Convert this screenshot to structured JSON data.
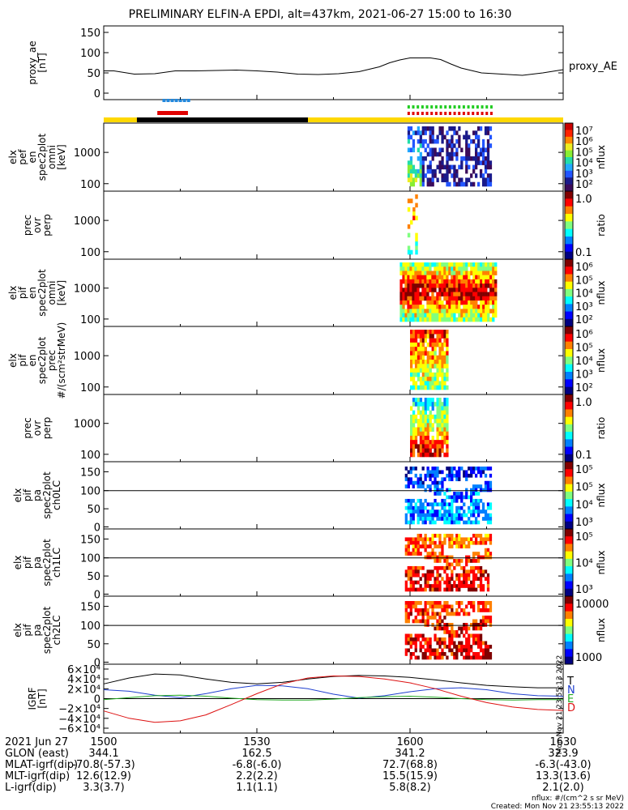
{
  "title": "PRELIMINARY ELFIN-A EPDI, alt=437km, 2021-06-27 15:00 to 16:30",
  "chart_data": [
    {
      "type": "line",
      "panel": "proxy_ae",
      "ylabel": [
        "proxy_ae",
        "[nT]"
      ],
      "yticks": [
        "150",
        "100",
        "50",
        "0"
      ],
      "ylim": [
        0,
        150
      ],
      "legend": "proxy_AE",
      "x_minutes": [
        0,
        2,
        6,
        10,
        14,
        18,
        22,
        26,
        30,
        34,
        38,
        42,
        46,
        50,
        54,
        56,
        58,
        60,
        62,
        64,
        66,
        68,
        70,
        74,
        78,
        82,
        86,
        90
      ],
      "values": [
        55,
        55,
        47,
        48,
        55,
        55,
        56,
        57,
        55,
        52,
        47,
        46,
        48,
        53,
        65,
        75,
        82,
        87,
        87,
        87,
        83,
        72,
        62,
        50,
        47,
        44,
        50,
        58
      ]
    },
    {
      "type": "heatmap",
      "panel": "elx_pef_en_spec2plot_omni",
      "ylabel": [
        "elx",
        "pef",
        "en",
        "spec2plot",
        "omni",
        "[keV]"
      ],
      "yticks": [
        "1000",
        "100"
      ],
      "colorbar": {
        "label": "nflux",
        "ticks": [
          "10⁷",
          "10⁶",
          "10⁵",
          "10⁴",
          "10³",
          "10²"
        ]
      }
    },
    {
      "type": "heatmap",
      "panel": "prec_ovr_perp_electrons",
      "ylabel": [
        "prec",
        "ovr",
        "perp"
      ],
      "yticks": [
        "1000",
        "100"
      ],
      "colorbar": {
        "label": "ratio",
        "ticks": [
          "1.0",
          "0.1"
        ]
      }
    },
    {
      "type": "heatmap",
      "panel": "elx_pif_en_spec2plot_omni",
      "ylabel": [
        "elx",
        "pif",
        "en",
        "spec2plot",
        "omni",
        "[keV]"
      ],
      "yticks": [
        "1000",
        "100"
      ],
      "colorbar": {
        "label": "nflux",
        "ticks": [
          "10⁶",
          "10⁵",
          "10⁴",
          "10³",
          "10²"
        ]
      }
    },
    {
      "type": "heatmap",
      "panel": "elx_pif_en_spec2plot_prec",
      "ylabel": [
        "elx",
        "pif",
        "en",
        "spec2plot",
        "prec",
        "#/(scm²strMeV)"
      ],
      "yticks": [
        "1000",
        "100"
      ],
      "colorbar": {
        "label": "nflux",
        "ticks": [
          "10⁶",
          "10⁵",
          "10⁴",
          "10³",
          "10²"
        ]
      }
    },
    {
      "type": "heatmap",
      "panel": "prec_ovr_perp_ions",
      "ylabel": [
        "prec",
        "ovr",
        "perp"
      ],
      "yticks": [
        "1000",
        "100"
      ],
      "colorbar": {
        "label": "ratio",
        "ticks": [
          "1.0",
          "0.1"
        ]
      }
    },
    {
      "type": "heatmap",
      "panel": "elx_pif_pa_spec2plot_ch0LC",
      "ylabel": [
        "elx",
        "pif",
        "pa",
        "spec2plot",
        "ch0LC"
      ],
      "yticks": [
        "150",
        "100",
        "50",
        "0"
      ],
      "colorbar": {
        "label": "nflux",
        "ticks": [
          "10⁵",
          "10⁵",
          "10⁴",
          "10³"
        ]
      }
    },
    {
      "type": "heatmap",
      "panel": "elx_pif_pa_spec2plot_ch1LC",
      "ylabel": [
        "elx",
        "pif",
        "pa",
        "spec2plot",
        "ch1LC"
      ],
      "yticks": [
        "150",
        "100",
        "50",
        "0"
      ],
      "colorbar": {
        "label": "nflux",
        "ticks": [
          "10⁵",
          "10⁴",
          "10³"
        ]
      }
    },
    {
      "type": "heatmap",
      "panel": "elx_pif_pa_spec2plot_ch2LC",
      "ylabel": [
        "elx",
        "pif",
        "pa",
        "spec2plot",
        "ch2LC"
      ],
      "yticks": [
        "150",
        "100",
        "50",
        "0"
      ],
      "colorbar": {
        "label": "nflux",
        "ticks": [
          "10000",
          "1000"
        ]
      }
    },
    {
      "type": "line",
      "panel": "IGRF",
      "ylabel": [
        "IGRF",
        "[nT]"
      ],
      "yticks": [
        "6×10⁴",
        "4×10⁴",
        "2×10⁴",
        "0",
        "−2×10⁴",
        "−4×10⁴",
        "−6×10⁴"
      ],
      "ylim": [
        -60000,
        60000
      ],
      "legend": [
        "T",
        "N",
        "E",
        "D"
      ],
      "series": [
        {
          "name": "T",
          "color": "#000000",
          "x_minutes": [
            0,
            5,
            10,
            15,
            20,
            25,
            30,
            35,
            40,
            45,
            50,
            55,
            60,
            65,
            70,
            75,
            80,
            85,
            90
          ],
          "values": [
            30000,
            42000,
            50000,
            48000,
            40000,
            33000,
            30000,
            33000,
            40000,
            45000,
            47000,
            46000,
            43000,
            38000,
            32000,
            27000,
            24000,
            22000,
            22000
          ]
        },
        {
          "name": "N",
          "color": "#1f3fcf",
          "x_minutes": [
            0,
            5,
            10,
            15,
            20,
            25,
            30,
            35,
            40,
            45,
            50,
            55,
            60,
            65,
            70,
            75,
            80,
            85,
            90
          ],
          "values": [
            18000,
            15000,
            7000,
            2000,
            10000,
            20000,
            27000,
            26000,
            20000,
            9000,
            1000,
            6000,
            14000,
            20000,
            22000,
            18000,
            10000,
            6000,
            5000
          ]
        },
        {
          "name": "E",
          "color": "#22aa22",
          "x_minutes": [
            0,
            5,
            10,
            15,
            20,
            25,
            30,
            35,
            40,
            45,
            50,
            55,
            60,
            65,
            70,
            75,
            80,
            85,
            90
          ],
          "values": [
            -2000,
            2000,
            6000,
            7000,
            5000,
            1000,
            -2000,
            -3000,
            -3000,
            -1000,
            2000,
            4000,
            5000,
            3000,
            0,
            -2000,
            -3000,
            -2000,
            -2000
          ]
        },
        {
          "name": "D",
          "color": "#dd1111",
          "x_minutes": [
            0,
            5,
            10,
            15,
            20,
            25,
            30,
            35,
            40,
            45,
            50,
            55,
            60,
            65,
            70,
            75,
            80,
            85,
            90
          ],
          "values": [
            -25000,
            -40000,
            -48000,
            -45000,
            -33000,
            -12000,
            10000,
            30000,
            42000,
            46000,
            45000,
            40000,
            32000,
            20000,
            5000,
            -8000,
            -17000,
            -22000,
            -24000
          ]
        }
      ]
    }
  ],
  "time_axis": {
    "rows": [
      {
        "label": "2021 Jun 27",
        "values": [
          "1500",
          "1530",
          "1600",
          "1630"
        ]
      },
      {
        "label": "GLON (east)",
        "values": [
          "344.1",
          "162.5",
          "341.2",
          "323.9"
        ]
      },
      {
        "label": "MLAT-igrf(dip)",
        "values": [
          "-70.8(-57.3)",
          "-6.8(-6.0)",
          "72.7(68.8)",
          "-6.3(-43.0)"
        ]
      },
      {
        "label": "MLT-igrf(dip)",
        "values": [
          "12.6(12.9)",
          "2.2(2.2)",
          "15.5(15.9)",
          "13.3(13.6)"
        ]
      },
      {
        "label": "L-igrf(dip)",
        "values": [
          "3.3(3.7)",
          "1.1(1.1)",
          "5.8(8.2)",
          "2.1(2.0)"
        ]
      }
    ]
  },
  "footnote": [
    "nflux: #/(cm^2 s sr MeV)",
    "Created: Mon Nov 21 23:55:13 2022"
  ],
  "side_stamp": "Mon Nov 21 23:55:13 2022"
}
